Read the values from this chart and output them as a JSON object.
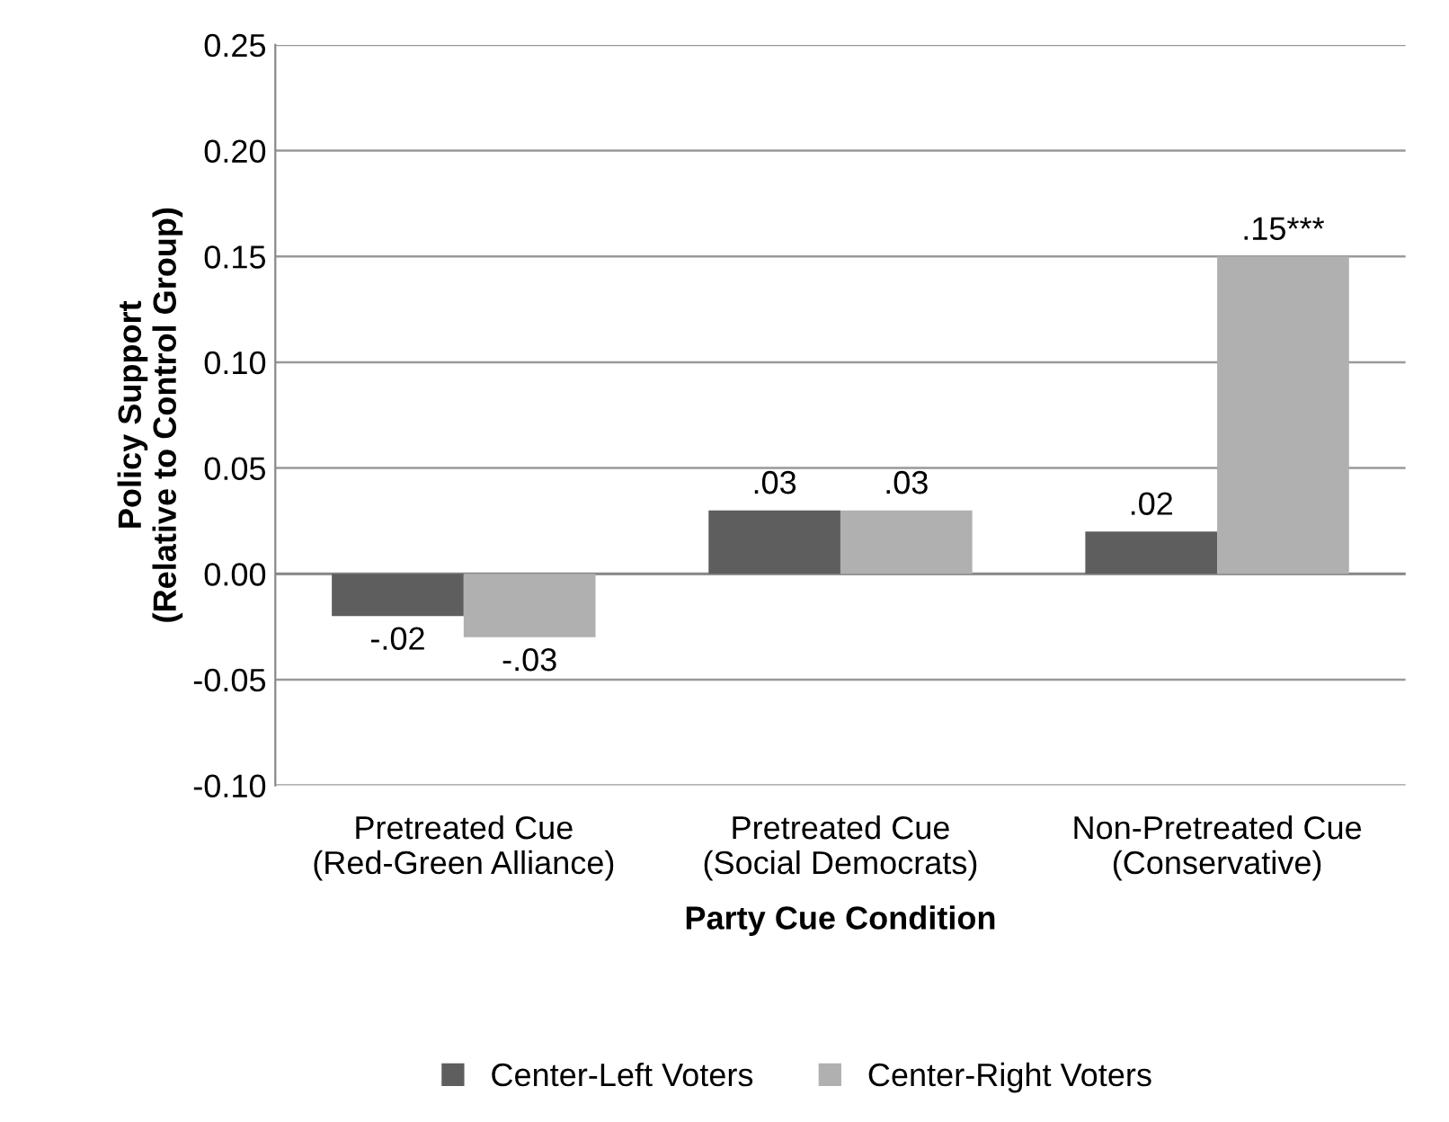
{
  "chart_data": {
    "type": "bar",
    "categories": [
      "Pretreated Cue\n(Red-Green Alliance)",
      "Pretreated Cue\n(Social Democrats)",
      "Non-Pretreated Cue\n(Conservative)"
    ],
    "series": [
      {
        "name": "Center-Left Voters",
        "color": "#5e5e5e",
        "values": [
          -0.02,
          0.03,
          0.02
        ],
        "value_labels": [
          "-.02",
          ".03",
          ".02"
        ]
      },
      {
        "name": "Center-Right Voters",
        "color": "#b0b0b0",
        "values": [
          -0.03,
          0.03,
          0.15
        ],
        "value_labels": [
          "-.03",
          ".03",
          ".15***"
        ]
      }
    ],
    "xlabel": "Party Cue Condition",
    "ylabel": "Policy Support\n(Relative to Control Group)",
    "ylim": [
      -0.1,
      0.25
    ],
    "yticks": [
      {
        "value": -0.1,
        "label": "-0.10"
      },
      {
        "value": -0.05,
        "label": "-0.05"
      },
      {
        "value": 0,
        "label": "0.00"
      },
      {
        "value": 0.05,
        "label": "0.05"
      },
      {
        "value": 0.1,
        "label": "0.10"
      },
      {
        "value": 0.15,
        "label": "0.15"
      },
      {
        "value": 0.2,
        "label": "0.20"
      },
      {
        "value": 0.25,
        "label": "0.25"
      }
    ],
    "grid": "y",
    "legend": "bottom"
  }
}
